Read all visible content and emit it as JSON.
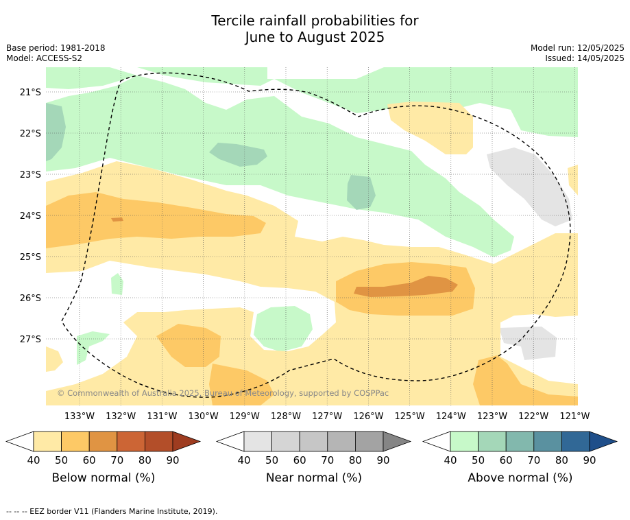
{
  "title_line1": "Tercile rainfall probabilities for",
  "title_line2": "June to August 2025",
  "base_period": "Base period: 1981-2018",
  "model": "Model: ACCESS-S2",
  "model_run": "Model run: 12/05/2025",
  "issued": "Issued: 14/05/2025",
  "copyright": "© Commonwealth of Australia 2025, Bureau of Meteorology, supported by COSPPac",
  "footer": "-- -- -- EEZ border V11 (Flanders Marine Institute, 2019).",
  "map": {
    "lon_labels": [
      "133°W",
      "132°W",
      "131°W",
      "130°W",
      "129°W",
      "128°W",
      "127°W",
      "126°W",
      "125°W",
      "124°W",
      "123°W",
      "122°W",
      "121°W"
    ],
    "lat_labels": [
      "21°S",
      "22°S",
      "23°S",
      "24°S",
      "25°S",
      "26°S",
      "27°S"
    ]
  },
  "colorbars": [
    {
      "id": "below",
      "label": "Below normal (%)",
      "ticks": [
        "40",
        "50",
        "60",
        "70",
        "80",
        "90"
      ],
      "colors": [
        "#ffeaa6",
        "#fdc966",
        "#e09443",
        "#cc6535",
        "#b34e29",
        "#9e3c20"
      ]
    },
    {
      "id": "near",
      "label": "Near normal (%)",
      "ticks": [
        "40",
        "50",
        "60",
        "70",
        "80",
        "90"
      ],
      "colors": [
        "#e4e4e4",
        "#d5d5d5",
        "#c6c6c6",
        "#b5b5b5",
        "#a3a3a3",
        "#858585"
      ]
    },
    {
      "id": "above",
      "label": "Above normal (%)",
      "ticks": [
        "40",
        "50",
        "60",
        "70",
        "80",
        "90"
      ],
      "colors": [
        "#c7f9c9",
        "#a4d7b8",
        "#82b8ad",
        "#5a91a0",
        "#316896",
        "#1f4f8a"
      ]
    }
  ]
}
